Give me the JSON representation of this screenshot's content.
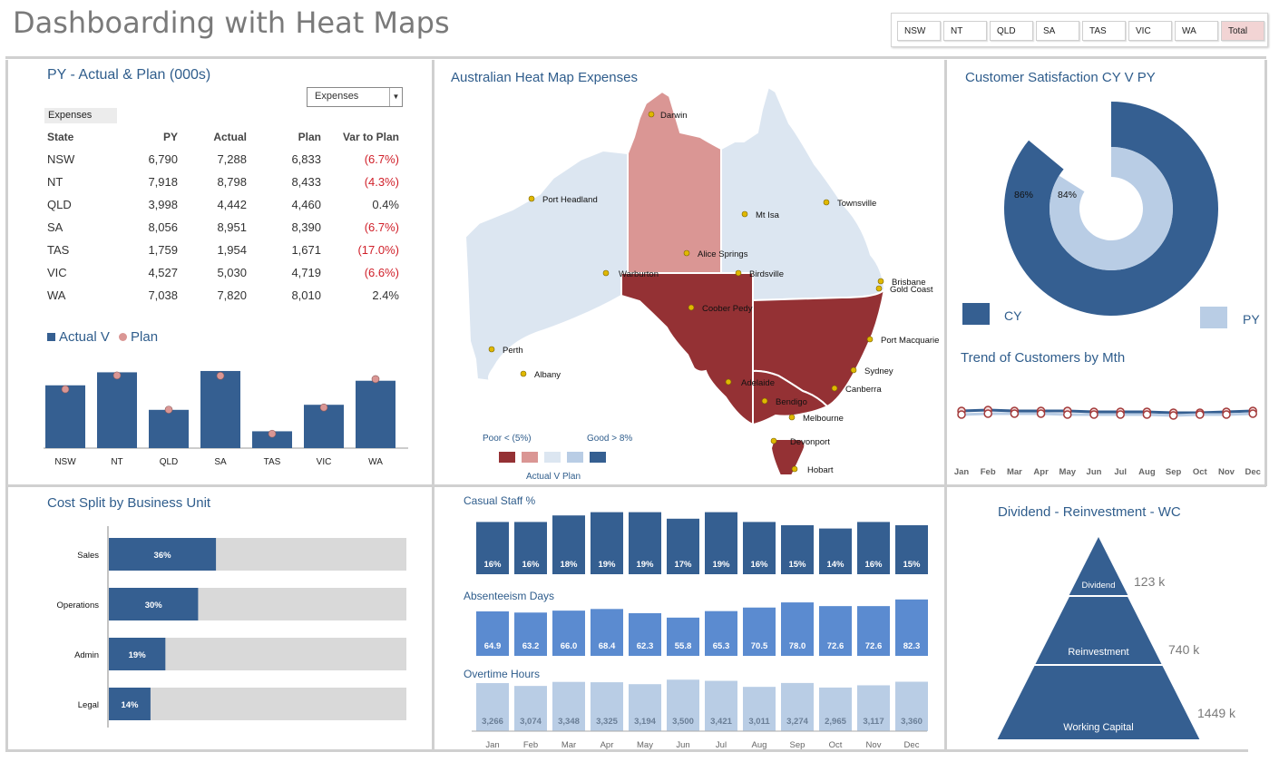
{
  "page_title": "Dashboarding with Heat Maps",
  "filters": [
    {
      "label": "NSW",
      "active": false
    },
    {
      "label": "NT",
      "active": false
    },
    {
      "label": "QLD",
      "active": false
    },
    {
      "label": "SA",
      "active": false
    },
    {
      "label": "TAS",
      "active": false
    },
    {
      "label": "VIC",
      "active": false
    },
    {
      "label": "WA",
      "active": false
    },
    {
      "label": "Total",
      "active": true
    }
  ],
  "colors": {
    "dark_blue": "#355f91",
    "mid_blue": "#5b8bd0",
    "light_blue": "#b9cde5",
    "dark_red": "#943134",
    "light_red": "#da9694",
    "pale_blue": "#dce6f1",
    "neg_red": "#d0202a",
    "grey_bar": "#d9d9d9"
  },
  "py_panel": {
    "title": "PY - Actual & Plan (000s)",
    "dropdown_value": "Expenses",
    "selected_label": "Expenses",
    "headers": [
      "State",
      "PY",
      "Actual",
      "Plan",
      "Var to Plan"
    ],
    "rows": [
      [
        "NSW",
        "6,790",
        "7,288",
        "6,833",
        "(6.7%)"
      ],
      [
        "NT",
        "7,918",
        "8,798",
        "8,433",
        "(4.3%)"
      ],
      [
        "QLD",
        "3,998",
        "4,442",
        "4,460",
        "0.4%"
      ],
      [
        "SA",
        "8,056",
        "8,951",
        "8,390",
        "(6.7%)"
      ],
      [
        "TAS",
        "1,759",
        "1,954",
        "1,671",
        "(17.0%)"
      ],
      [
        "VIC",
        "4,527",
        "5,030",
        "4,719",
        "(6.6%)"
      ],
      [
        "WA",
        "7,038",
        "7,820",
        "8,010",
        "2.4%"
      ]
    ],
    "legend_actual": "Actual V",
    "legend_plan": "Plan"
  },
  "map_panel": {
    "title": "Australian Heat Map Expenses",
    "legend_poor": "Poor < (5%)",
    "legend_good": "Good > 8%",
    "legend_caption": "Actual V Plan",
    "cities": [
      "Darwin",
      "Port Headland",
      "Mt Isa",
      "Townsville",
      "Alice Springs",
      "Warburton",
      "Birdsville",
      "Brisbane",
      "Gold Coast",
      "Coober Pedy",
      "Port Macquarie",
      "Perth",
      "Sydney",
      "Albany",
      "Adelaide",
      "Canberra",
      "Bendigo",
      "Melbourne",
      "Devonport",
      "Hobart"
    ]
  },
  "satisfaction_panel": {
    "title": "Customer Satisfaction CY V PY",
    "cy_label": "CY",
    "py_label": "PY",
    "cy_value": "86%",
    "py_value": "84%"
  },
  "trend_panel": {
    "title": "Trend of Customers by Mth",
    "months": [
      "Jan",
      "Feb",
      "Mar",
      "Apr",
      "May",
      "Jun",
      "Jul",
      "Aug",
      "Sep",
      "Oct",
      "Nov",
      "Dec"
    ]
  },
  "cost_panel": {
    "title": "Cost Split by Business Unit",
    "items": [
      {
        "label": "Sales",
        "value": "36%"
      },
      {
        "label": "Operations",
        "value": "30%"
      },
      {
        "label": "Admin",
        "value": "19%"
      },
      {
        "label": "Legal",
        "value": "14%"
      }
    ]
  },
  "staff_panel": {
    "casual_title": "Casual Staff %",
    "absent_title": "Absenteeism Days",
    "overtime_title": "Overtime Hours",
    "months": [
      "Jan",
      "Feb",
      "Mar",
      "Apr",
      "May",
      "Jun",
      "Jul",
      "Aug",
      "Sep",
      "Oct",
      "Nov",
      "Dec"
    ]
  },
  "dividend_panel": {
    "title": "Dividend - Reinvestment - WC",
    "tiers": [
      {
        "label": "Dividend",
        "value": "123 k"
      },
      {
        "label": "Reinvestment",
        "value": "740 k"
      },
      {
        "label": "Working Capital",
        "value": "1449 k"
      }
    ]
  },
  "chart_data": [
    {
      "type": "bar",
      "title": "",
      "categories": [
        "NSW",
        "NT",
        "QLD",
        "SA",
        "TAS",
        "VIC",
        "WA"
      ],
      "series": [
        {
          "name": "Actual",
          "values": [
            7288,
            8798,
            4442,
            8951,
            1954,
            5030,
            7820
          ]
        },
        {
          "name": "Plan",
          "values": [
            6833,
            8433,
            4460,
            8390,
            1671,
            4719,
            8010
          ]
        }
      ],
      "ylim": [
        0,
        10000
      ],
      "grid": false,
      "legend": "top-left"
    },
    {
      "type": "pie",
      "title": "",
      "categories": [
        "CY",
        "PY"
      ],
      "values": [
        86,
        84
      ],
      "legend": "bottom"
    },
    {
      "type": "line",
      "title": "",
      "categories": [
        "Jan",
        "Feb",
        "Mar",
        "Apr",
        "May",
        "Jun",
        "Jul",
        "Aug",
        "Sep",
        "Oct",
        "Nov",
        "Dec"
      ],
      "series": [
        {
          "values": [
            82,
            83,
            82,
            82,
            82,
            81,
            81,
            81,
            80,
            80,
            81,
            82
          ]
        },
        {
          "values": [
            78,
            79,
            79,
            79,
            78,
            78,
            78,
            78,
            77,
            78,
            78,
            79
          ]
        }
      ],
      "ylim": [
        60,
        100
      ],
      "grid": false
    },
    {
      "type": "bar",
      "title": "",
      "orientation": "horizontal",
      "categories": [
        "Sales",
        "Operations",
        "Admin",
        "Legal"
      ],
      "values": [
        36,
        30,
        19,
        14
      ],
      "xlim": [
        0,
        100
      ],
      "grid": false
    },
    {
      "type": "bar",
      "title": "Casual Staff %",
      "categories": [
        "Jan",
        "Feb",
        "Mar",
        "Apr",
        "May",
        "Jun",
        "Jul",
        "Aug",
        "Sep",
        "Oct",
        "Nov",
        "Dec"
      ],
      "values": [
        16,
        16,
        18,
        19,
        19,
        17,
        19,
        16,
        15,
        14,
        16,
        15
      ],
      "labels": [
        "16%",
        "16%",
        "18%",
        "19%",
        "19%",
        "17%",
        "19%",
        "16%",
        "15%",
        "14%",
        "16%",
        "15%"
      ],
      "ylim": [
        0,
        20
      ]
    },
    {
      "type": "bar",
      "title": "Absenteeism Days",
      "categories": [
        "Jan",
        "Feb",
        "Mar",
        "Apr",
        "May",
        "Jun",
        "Jul",
        "Aug",
        "Sep",
        "Oct",
        "Nov",
        "Dec"
      ],
      "values": [
        64.9,
        63.2,
        66.0,
        68.4,
        62.3,
        55.8,
        65.3,
        70.5,
        78.0,
        72.6,
        72.6,
        82.3
      ],
      "labels": [
        "64.9",
        "63.2",
        "66.0",
        "68.4",
        "62.3",
        "55.8",
        "65.3",
        "70.5",
        "78.0",
        "72.6",
        "72.6",
        "82.3"
      ],
      "ylim": [
        0,
        90
      ]
    },
    {
      "type": "bar",
      "title": "Overtime Hours",
      "categories": [
        "Jan",
        "Feb",
        "Mar",
        "Apr",
        "May",
        "Jun",
        "Jul",
        "Aug",
        "Sep",
        "Oct",
        "Nov",
        "Dec"
      ],
      "values": [
        3266,
        3074,
        3348,
        3325,
        3194,
        3500,
        3421,
        3011,
        3274,
        2965,
        3117,
        3360
      ],
      "labels": [
        "3,266",
        "3,074",
        "3,348",
        "3,325",
        "3,194",
        "3,500",
        "3,421",
        "3,011",
        "3,274",
        "2,965",
        "3,117",
        "3,360"
      ],
      "ylim": [
        0,
        3700
      ]
    },
    {
      "type": "pyramid",
      "title": "",
      "categories": [
        "Dividend",
        "Reinvestment",
        "Working Capital"
      ],
      "values": [
        123,
        740,
        1449
      ]
    }
  ]
}
